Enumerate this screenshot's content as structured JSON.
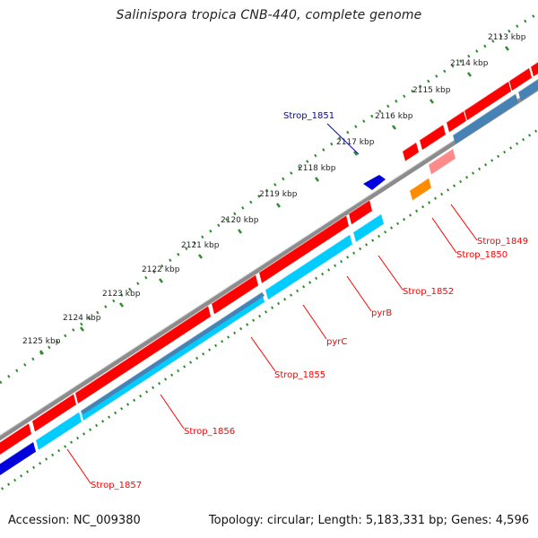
{
  "title": "Salinispora tropica CNB-440, complete genome",
  "footer": {
    "accession": "Accession: NC_009380",
    "summary": "Topology: circular; Length: 5,183,331 bp; Genes: 4,596"
  },
  "ticks": [
    "2113 kbp",
    "2114 kbp",
    "2115 kbp",
    "2116 kbp",
    "2117 kbp",
    "2118 kbp",
    "2119 kbp",
    "2120 kbp",
    "2121 kbp",
    "2122 kbp",
    "2123 kbp",
    "2124 kbp",
    "2125 kbp"
  ],
  "genes": [
    {
      "label": "Strop_1849",
      "color": "#ff0000"
    },
    {
      "label": "Strop_1850",
      "color": "#ff0000"
    },
    {
      "label": "Strop_1851",
      "color": "#0000cc"
    },
    {
      "label": "Strop_1852",
      "color": "#ff0000"
    },
    {
      "label": "pyrB",
      "color": "#ff0000"
    },
    {
      "label": "pyrC",
      "color": "#ff0000"
    },
    {
      "label": "Strop_1855",
      "color": "#ff0000"
    },
    {
      "label": "Strop_1856",
      "color": "#ff0000"
    },
    {
      "label": "Strop_1857",
      "color": "#ff0000"
    }
  ],
  "colors": {
    "backbone": "#8c8c8c",
    "forward_feature": "#ff0000",
    "forward_feature_light": "#ff8a8a",
    "reverse_feature": "#00ccff",
    "reverse_feature_dark": "#4682b4",
    "blue_feature": "#0000dd",
    "orange_feature": "#ff8c00",
    "tick_color": "#2e8b2e",
    "label_red": "#ff0000",
    "label_blue": "#0000cc"
  }
}
